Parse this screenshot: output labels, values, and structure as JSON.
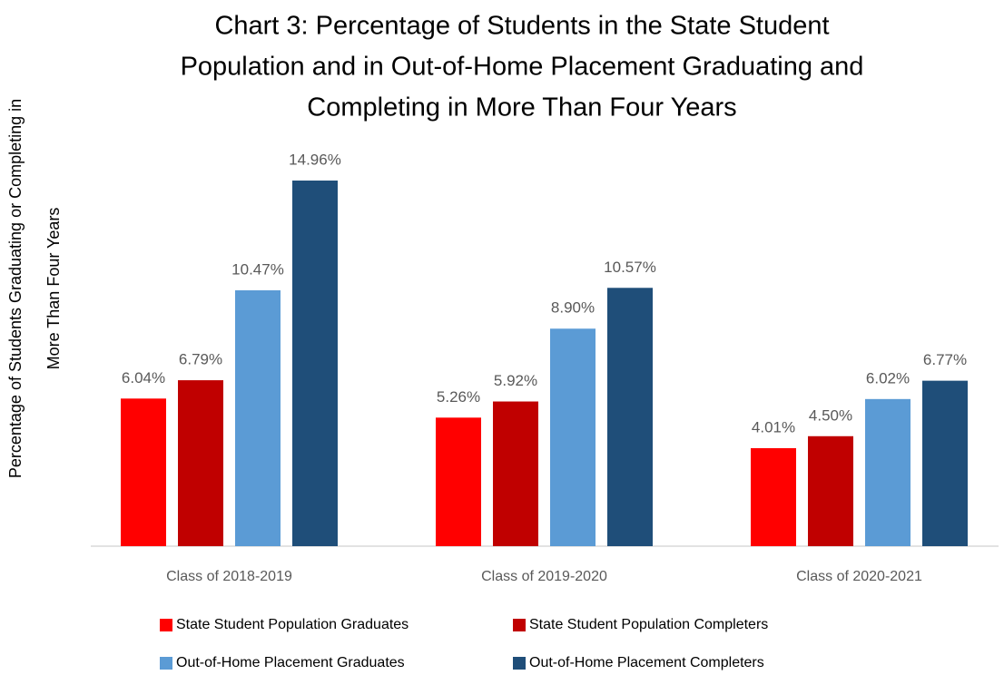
{
  "chart_data": {
    "type": "bar",
    "title": [
      "Chart 3: Percentage of Students in the State Student",
      "Population and in Out-of-Home Placement Graduating and",
      "Completing in More Than Four Years"
    ],
    "ylabel": [
      "Percentage of Students Graduating or Completing in",
      "More  Than Four Years"
    ],
    "categories": [
      "Class of 2018-2019",
      "Class of 2019-2020",
      "Class of 2020-2021"
    ],
    "series": [
      {
        "name": "State Student Population Graduates",
        "color": "#ff0000",
        "values": [
          6.04,
          5.26,
          4.01
        ],
        "value_labels": [
          "6.04%",
          "5.26%",
          "4.01%"
        ]
      },
      {
        "name": "State Student Population Completers",
        "color": "#c00000",
        "values": [
          6.79,
          5.92,
          4.5
        ],
        "value_labels": [
          "6.79%",
          "5.92%",
          "4.50%"
        ]
      },
      {
        "name": "Out-of-Home Placement Graduates",
        "color": "#5b9bd5",
        "values": [
          10.47,
          8.9,
          6.02
        ],
        "value_labels": [
          "10.47%",
          "8.90%",
          "6.02%"
        ]
      },
      {
        "name": "Out-of-Home Placement Completers",
        "color": "#1f4e79",
        "values": [
          14.96,
          10.57,
          6.77
        ],
        "value_labels": [
          "14.96%",
          "10.57%",
          "6.77%"
        ]
      }
    ],
    "ylim": [
      0,
      16
    ]
  }
}
